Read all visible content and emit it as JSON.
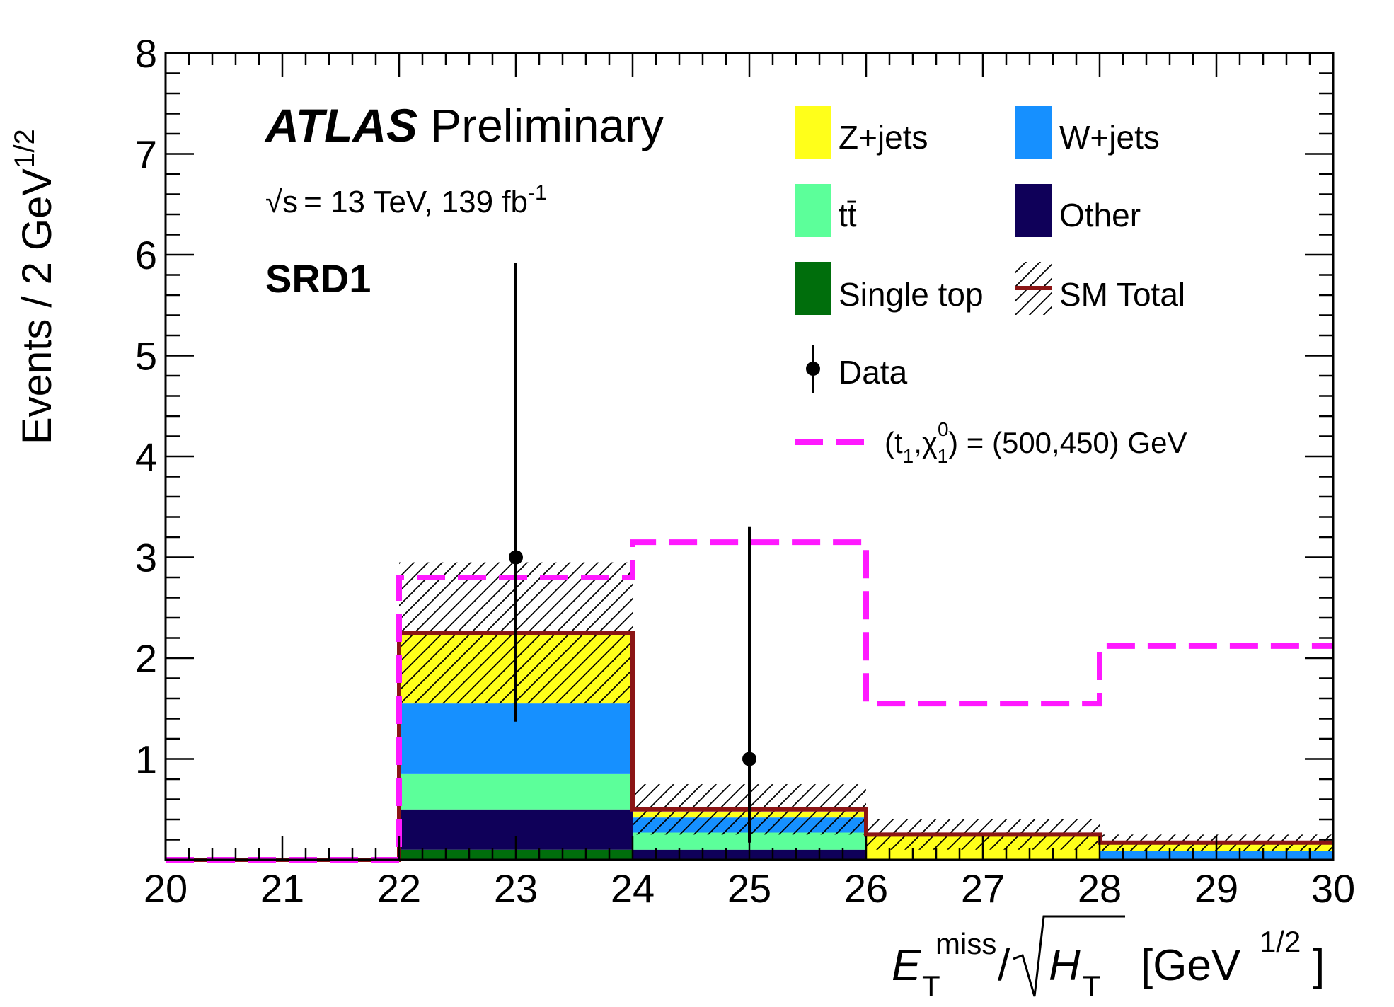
{
  "chart_data": {
    "type": "bar",
    "stacked": true,
    "histogram": true,
    "experiment": "ATLAS",
    "status": "Preliminary",
    "energy_sqrt_s": "√s",
    "energy_value": "= 13 TeV, 139 fb",
    "energy_exponent": "-1",
    "region": "SRD1",
    "xlabel": "E",
    "xlabel_sub": "T",
    "xlabel_sup": "miss",
    "xlabel_den": "H",
    "xlabel_den_sub": "T",
    "xlabel_unit": "[GeV",
    "xlabel_unit_sup": "1/2",
    "xlabel_unit_close": "]",
    "ylabel": "Events / 2 GeV",
    "ylabel_sup": "1/2",
    "xlim": [
      20,
      30
    ],
    "ylim": [
      0,
      8
    ],
    "x_ticks": [
      "20",
      "21",
      "22",
      "23",
      "24",
      "25",
      "26",
      "27",
      "28",
      "29",
      "30"
    ],
    "y_ticks": [
      "1",
      "2",
      "3",
      "4",
      "5",
      "6",
      "7",
      "8"
    ],
    "bin_edges": [
      20,
      22,
      24,
      26,
      28,
      30
    ],
    "series": [
      {
        "name": "Single top",
        "color": "#006e0c",
        "values": [
          0,
          0.1,
          0.0,
          0.0,
          0.0
        ]
      },
      {
        "name": "Other",
        "color": "#0f0059",
        "values": [
          0,
          0.4,
          0.1,
          0.0,
          0.0
        ]
      },
      {
        "name": "tt̄",
        "color": "#5cff9a",
        "values": [
          0,
          0.35,
          0.17,
          0.0,
          0.0
        ]
      },
      {
        "name": "W+jets",
        "color": "#1690ff",
        "values": [
          0,
          0.7,
          0.15,
          0.0,
          0.09
        ]
      },
      {
        "name": "Z+jets",
        "color": "#ffff1a",
        "values": [
          0,
          0.7,
          0.05,
          0.25,
          0.08
        ]
      }
    ],
    "sm_total": {
      "name": "SM Total",
      "color": "#8b1515",
      "values": [
        0,
        2.25,
        0.5,
        0.25,
        0.17
      ]
    },
    "sm_uncertainty": {
      "up": [
        0,
        2.95,
        0.75,
        0.4,
        0.25
      ],
      "down": [
        0,
        1.55,
        0.25,
        0.1,
        0.09
      ]
    },
    "data": {
      "name": "Data",
      "x": [
        23,
        25
      ],
      "y": [
        3,
        1
      ],
      "err_low": [
        1.63,
        0.83
      ],
      "err_high": [
        2.92,
        2.3
      ]
    },
    "signal": {
      "label_pre": "(",
      "label_t": "t",
      "label_t_sub": "1",
      "label_comma": ",",
      "label_chi": "χ",
      "label_chi_sup": "0",
      "label_chi_sub": "1",
      "label_post": ") = (500,450) GeV",
      "color": "#ff19ff",
      "values": [
        0,
        2.8,
        3.15,
        1.55,
        2.12
      ]
    },
    "legend_placement": "top-right",
    "grid": false
  }
}
